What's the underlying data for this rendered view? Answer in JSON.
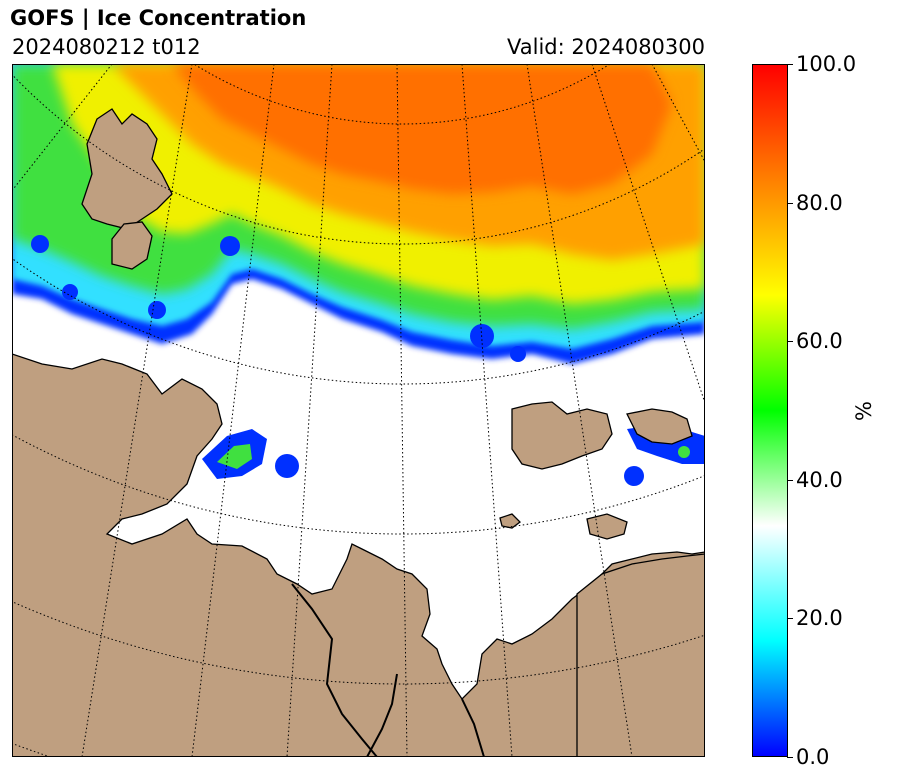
{
  "header": {
    "title": "GOFS  |  Ice Concentration",
    "cycle": "2024080212 t012",
    "valid": "Valid: 2024080300"
  },
  "map": {
    "projection": "polar stereographic",
    "land_color": "#BF9F80",
    "ocean_color": "#FFFFFF",
    "graticule": "dotted"
  },
  "colorbar": {
    "min": 0.0,
    "max": 100.0,
    "ticks": [
      "0.0",
      "20.0",
      "40.0",
      "60.0",
      "80.0",
      "100.0"
    ],
    "unit": "%",
    "colormap": [
      "#0000FF",
      "#00FFFF",
      "#FFFFFF",
      "#00FF00",
      "#FFFF00",
      "#FF8000",
      "#FF0000"
    ]
  }
}
